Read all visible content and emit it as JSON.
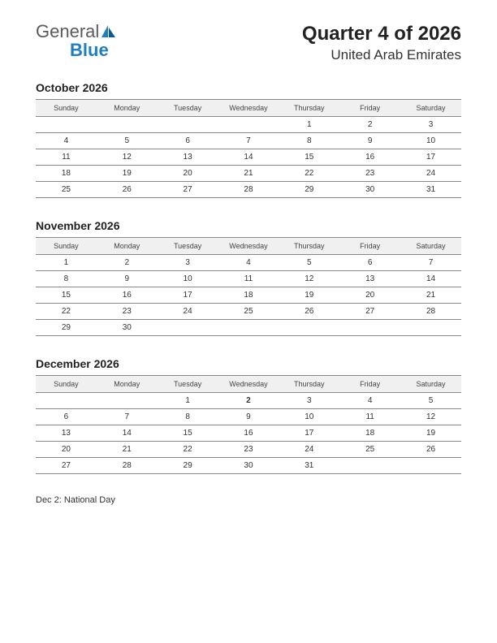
{
  "logo": {
    "general": "General",
    "blue": "Blue",
    "icon_color1": "#1e7fc2",
    "icon_color2": "#0d5a8e"
  },
  "header": {
    "title": "Quarter 4 of 2026",
    "subtitle": "United Arab Emirates"
  },
  "day_headers": [
    "Sunday",
    "Monday",
    "Tuesday",
    "Wednesday",
    "Thursday",
    "Friday",
    "Saturday"
  ],
  "months": [
    {
      "title": "October 2026",
      "weeks": [
        [
          "",
          "",
          "",
          "",
          "1",
          "2",
          "3"
        ],
        [
          "4",
          "5",
          "6",
          "7",
          "8",
          "9",
          "10"
        ],
        [
          "11",
          "12",
          "13",
          "14",
          "15",
          "16",
          "17"
        ],
        [
          "18",
          "19",
          "20",
          "21",
          "22",
          "23",
          "24"
        ],
        [
          "25",
          "26",
          "27",
          "28",
          "29",
          "30",
          "31"
        ]
      ],
      "holidays": []
    },
    {
      "title": "November 2026",
      "weeks": [
        [
          "1",
          "2",
          "3",
          "4",
          "5",
          "6",
          "7"
        ],
        [
          "8",
          "9",
          "10",
          "11",
          "12",
          "13",
          "14"
        ],
        [
          "15",
          "16",
          "17",
          "18",
          "19",
          "20",
          "21"
        ],
        [
          "22",
          "23",
          "24",
          "25",
          "26",
          "27",
          "28"
        ],
        [
          "29",
          "30",
          "",
          "",
          "",
          "",
          ""
        ]
      ],
      "holidays": []
    },
    {
      "title": "December 2026",
      "weeks": [
        [
          "",
          "",
          "1",
          "2",
          "3",
          "4",
          "5"
        ],
        [
          "6",
          "7",
          "8",
          "9",
          "10",
          "11",
          "12"
        ],
        [
          "13",
          "14",
          "15",
          "16",
          "17",
          "18",
          "19"
        ],
        [
          "20",
          "21",
          "22",
          "23",
          "24",
          "25",
          "26"
        ],
        [
          "27",
          "28",
          "29",
          "30",
          "31",
          "",
          ""
        ]
      ],
      "holidays": [
        "2"
      ]
    }
  ],
  "notes": "Dec 2: National Day",
  "styling": {
    "page_bg": "#ffffff",
    "header_row_bg": "#f0f0f0",
    "border_color": "#888888",
    "text_color": "#333333",
    "holiday_color": "#cc0000",
    "day_header_fontsize": 9,
    "cell_fontsize": 10,
    "month_title_fontsize": 14,
    "main_title_fontsize": 24,
    "subtitle_fontsize": 17
  }
}
